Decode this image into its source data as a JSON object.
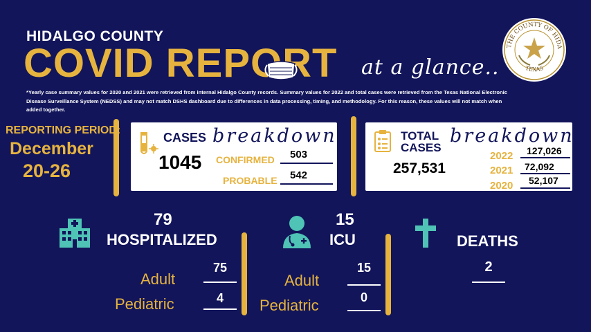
{
  "header": {
    "county": "HIDALGO COUNTY",
    "title": "COVID REPORT",
    "tagline": "at a glance..",
    "note": "*Yearly case summary values for 2020 and 2021 were retrieved from internal Hidalgo County records. Summary values for 2022 and total cases were retrieved from the Texas National Electronic Disease Surveillance System (NEDSS) and may not match DSHS dashboard due to differences in data processing, timing, and methodology. For this reason, these values will not match when added together.",
    "seal": {
      "top_text": "THE COUNTY OF HIDALGO",
      "bottom_text": "TEXAS"
    }
  },
  "reporting": {
    "label": "REPORTING PERIOD:",
    "month": "December",
    "days": "20-26"
  },
  "cases": {
    "icon": "test-tube-virus-icon",
    "title": "CASES",
    "script": "breakdown",
    "total": "1045",
    "confirmed_label": "CONFIRMED",
    "confirmed": "503",
    "probable_label": "PROBABLE",
    "probable": "542"
  },
  "total_cases": {
    "icon": "clipboard-icon",
    "title_line1": "TOTAL",
    "title_line2": "CASES",
    "script": "breakdown",
    "total": "257,531",
    "years": [
      {
        "year": "2022",
        "value": "127,026"
      },
      {
        "year": "2021",
        "value": "72,092"
      },
      {
        "year": "2020",
        "value": "52,107"
      }
    ]
  },
  "hospitalized": {
    "icon": "hospital-icon",
    "total": "79",
    "label": "HOSPITALIZED",
    "adult_label": "Adult",
    "adult": "75",
    "pediatric_label": "Pediatric",
    "pediatric": "4"
  },
  "icu": {
    "icon": "doctor-icon",
    "total": "15",
    "label": "ICU",
    "adult_label": "Adult",
    "adult": "15",
    "pediatric_label": "Pediatric",
    "pediatric": "0"
  },
  "deaths": {
    "icon": "cross-icon",
    "label": "DEATHS",
    "value": "2"
  },
  "colors": {
    "background": "#12155a",
    "gold": "#e6b33f",
    "teal": "#4fc3b5",
    "white": "#ffffff"
  }
}
